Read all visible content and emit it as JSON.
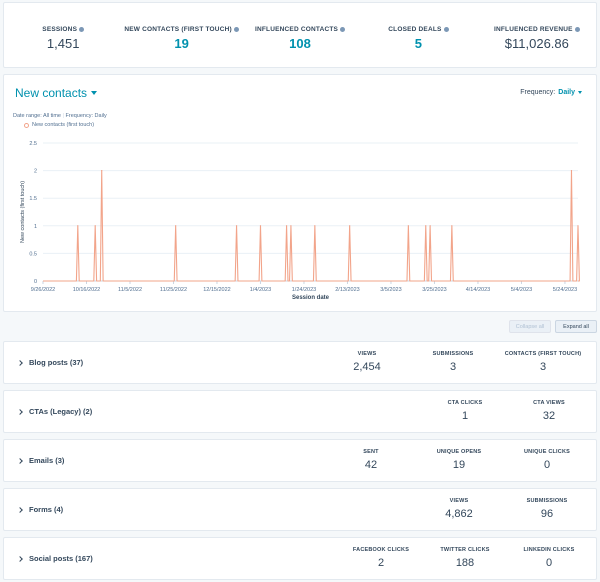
{
  "kpis": [
    {
      "label": "SESSIONS",
      "value": "1,451"
    },
    {
      "label": "NEW CONTACTS (FIRST TOUCH)",
      "value": "19"
    },
    {
      "label": "INFLUENCED CONTACTS",
      "value": "108"
    },
    {
      "label": "CLOSED DEALS",
      "value": "5"
    },
    {
      "label": "INFLUENCED REVENUE",
      "value": "$11,026.86"
    }
  ],
  "chart_card": {
    "title": "New contacts",
    "frequency_label": "Frequency:",
    "frequency_value": "Daily",
    "date_range": "Date range: All time",
    "frequency_meta": "Frequency: Daily",
    "legend": "New contacts (first touch)"
  },
  "chart_data": {
    "type": "line",
    "xlabel": "Session date",
    "ylabel": "New contacts (first touch)",
    "ylim": [
      0,
      2.5
    ],
    "yticks": [
      "0",
      "0.5",
      "1",
      "1.5",
      "2",
      "2.5"
    ],
    "xticks": [
      "9/26/2022",
      "10/16/2022",
      "11/5/2022",
      "11/25/2022",
      "12/15/2022",
      "1/4/2023",
      "1/24/2023",
      "2/13/2023",
      "3/5/2023",
      "3/25/2023",
      "4/14/2023",
      "5/4/2023",
      "5/24/2023"
    ],
    "x_start": "9/26/2022",
    "x_end": "5/30/2023",
    "grid": true,
    "color": "#f2a48a",
    "points": [
      {
        "date": "10/12/2022",
        "value": 1
      },
      {
        "date": "10/20/2022",
        "value": 1
      },
      {
        "date": "10/23/2022",
        "value": 2
      },
      {
        "date": "11/26/2022",
        "value": 1
      },
      {
        "date": "12/24/2022",
        "value": 1
      },
      {
        "date": "1/4/2023",
        "value": 1
      },
      {
        "date": "1/16/2023",
        "value": 1
      },
      {
        "date": "1/18/2023",
        "value": 1
      },
      {
        "date": "1/29/2023",
        "value": 1
      },
      {
        "date": "2/14/2023",
        "value": 1
      },
      {
        "date": "3/13/2023",
        "value": 1
      },
      {
        "date": "3/21/2023",
        "value": 1
      },
      {
        "date": "3/23/2023",
        "value": 1
      },
      {
        "date": "4/2/2023",
        "value": 1
      },
      {
        "date": "5/27/2023",
        "value": 2
      },
      {
        "date": "5/30/2023",
        "value": 1
      }
    ]
  },
  "buttons": {
    "collapse": "Collapse all",
    "expand": "Expand all"
  },
  "sections": [
    {
      "title": "Blog posts (37)",
      "stats": [
        {
          "label": "VIEWS",
          "value": "2,454"
        },
        {
          "label": "SUBMISSIONS",
          "value": "3"
        },
        {
          "label": "CONTACTS (FIRST TOUCH)",
          "value": "3"
        }
      ]
    },
    {
      "title": "CTAs (Legacy) (2)",
      "stats": [
        {
          "label": "CTA CLICKS",
          "value": "1"
        },
        {
          "label": "CTA VIEWS",
          "value": "32"
        }
      ]
    },
    {
      "title": "Emails (3)",
      "stats": [
        {
          "label": "SENT",
          "value": "42"
        },
        {
          "label": "UNIQUE OPENS",
          "value": "19"
        },
        {
          "label": "UNIQUE CLICKS",
          "value": "0"
        }
      ]
    },
    {
      "title": "Forms (4)",
      "stats": [
        {
          "label": "VIEWS",
          "value": "4,862"
        },
        {
          "label": "SUBMISSIONS",
          "value": "96"
        }
      ]
    },
    {
      "title": "Social posts (167)",
      "stats": [
        {
          "label": "FACEBOOK CLICKS",
          "value": "2"
        },
        {
          "label": "TWITTER CLICKS",
          "value": "188"
        },
        {
          "label": "LINKEDIN CLICKS",
          "value": "0"
        }
      ]
    }
  ]
}
